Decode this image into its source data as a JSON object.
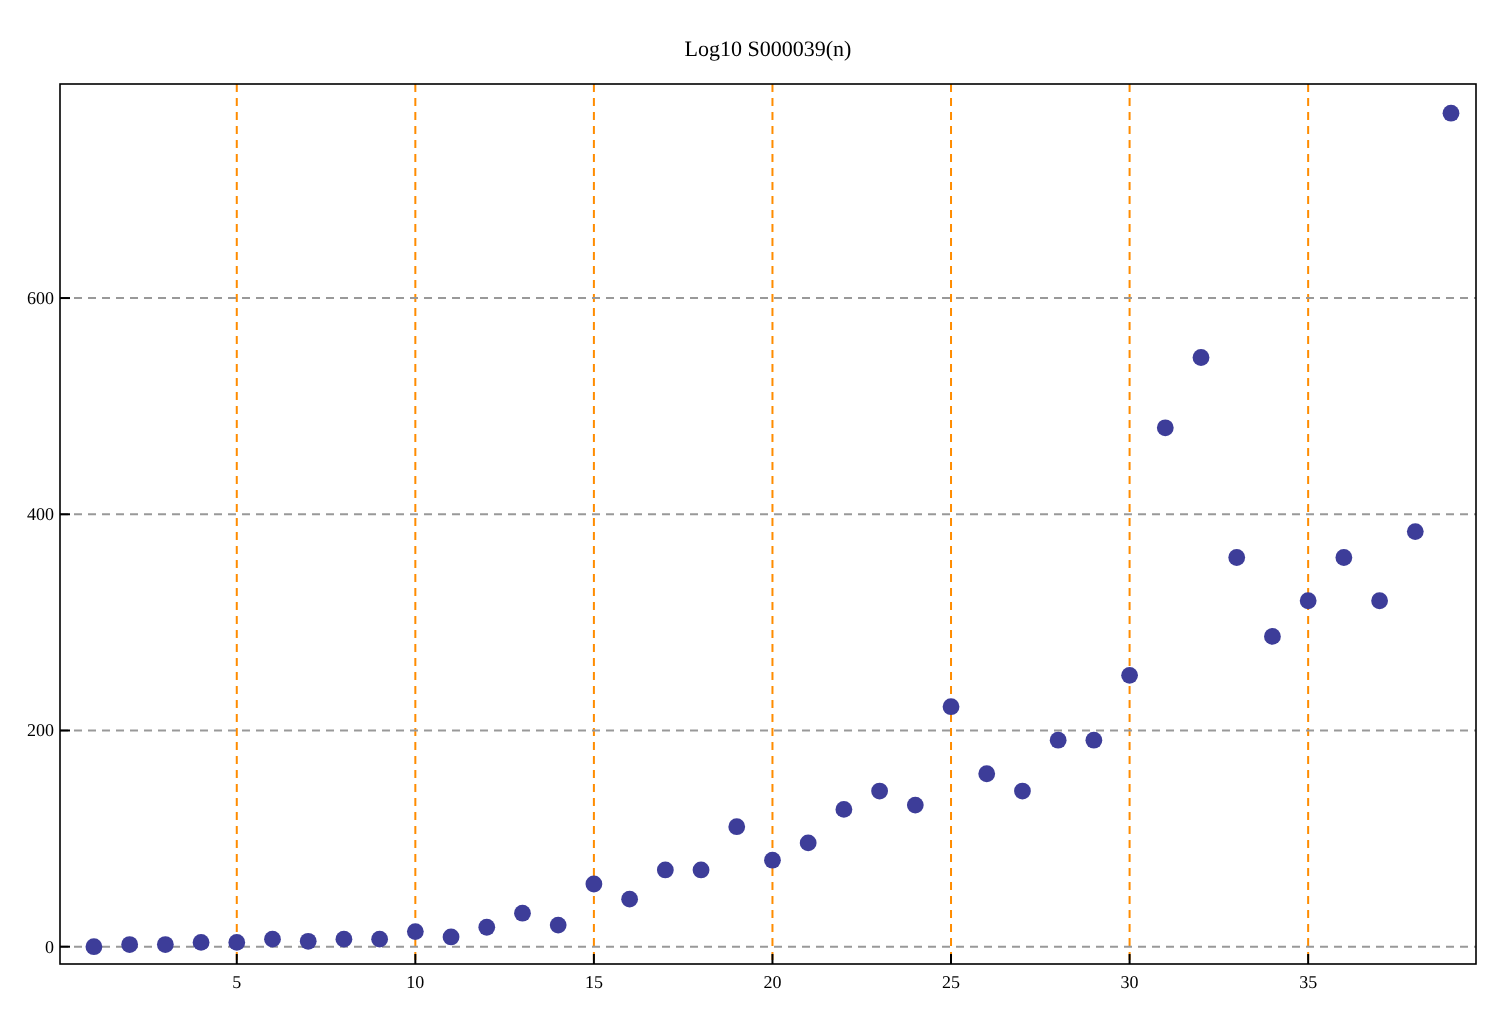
{
  "chart_data": {
    "type": "scatter",
    "title": "Log10 S000039(n)",
    "x": [
      1,
      2,
      3,
      4,
      5,
      6,
      7,
      8,
      9,
      10,
      11,
      12,
      13,
      14,
      15,
      16,
      17,
      18,
      19,
      20,
      21,
      22,
      23,
      24,
      25,
      26,
      27,
      28,
      29,
      30,
      31,
      32,
      33,
      34,
      35,
      36,
      37,
      38,
      39
    ],
    "series": [
      {
        "color": "#3d3d99",
        "values": [
          0,
          2,
          2,
          4,
          4,
          7,
          5,
          7,
          7,
          14,
          9,
          18,
          31,
          20,
          58,
          44,
          71,
          71,
          111,
          80,
          96,
          127,
          144,
          131,
          222,
          160,
          144,
          191,
          191,
          251,
          480,
          545,
          360,
          287,
          320,
          360,
          320,
          384,
          771
        ]
      }
    ],
    "xlim": [
      0.05,
      39.7
    ],
    "ylim": [
      -16,
      798
    ],
    "xticks": [
      5,
      10,
      15,
      20,
      25,
      30,
      35
    ],
    "yticks": [
      0,
      200,
      400,
      600
    ],
    "grid": true,
    "marker": "circle"
  }
}
